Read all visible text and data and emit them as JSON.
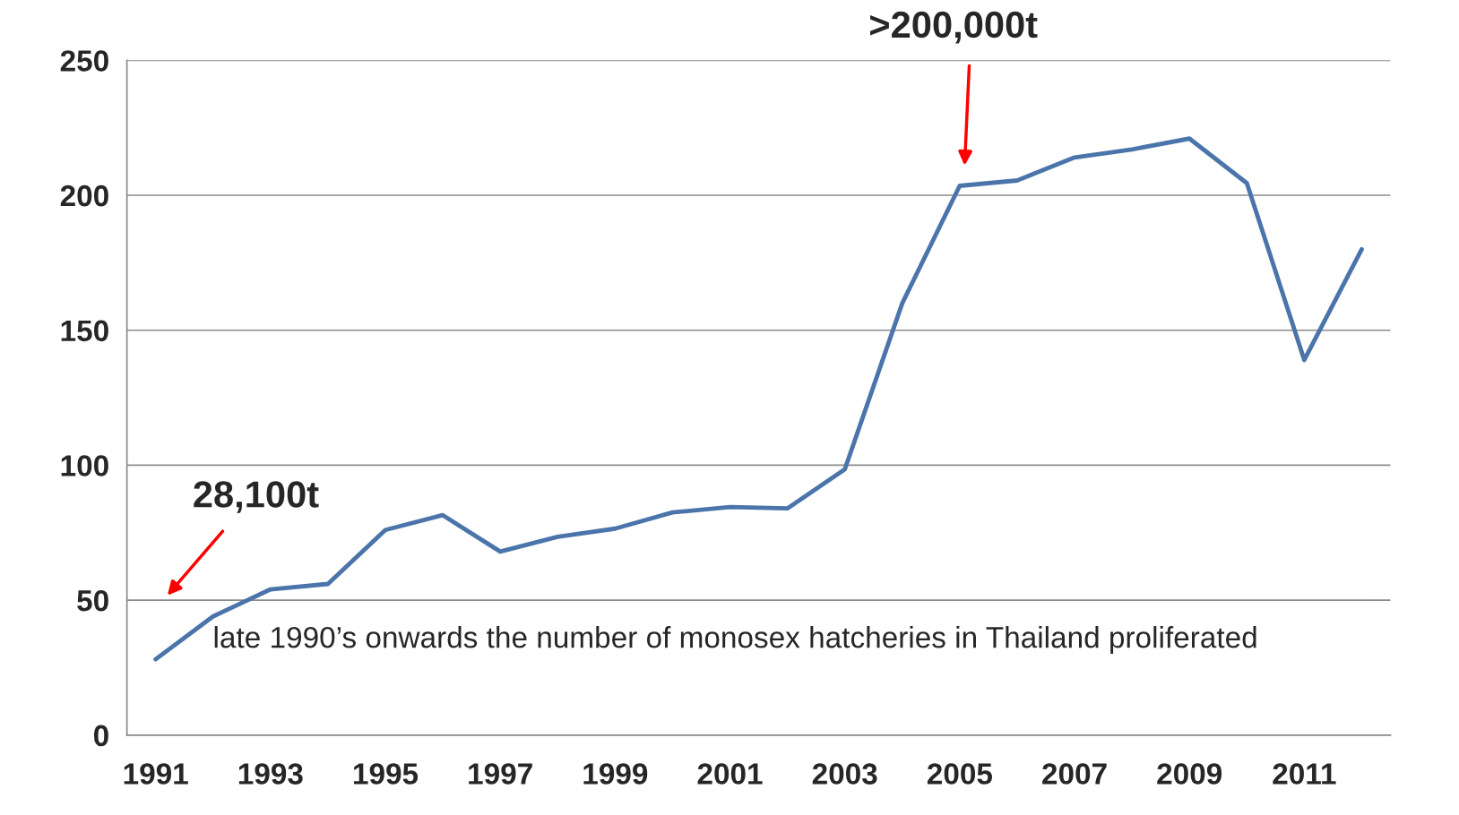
{
  "chart_data": {
    "type": "line",
    "categories": [
      "1991",
      null,
      "1993",
      null,
      "1995",
      null,
      "1997",
      null,
      "1999",
      null,
      "2001",
      null,
      "2003",
      null,
      "2005",
      null,
      "2007",
      null,
      "2009",
      null,
      "2011",
      null
    ],
    "series": [
      {
        "color": "#4a74aa",
        "values": [
          28.1,
          44,
          54,
          56,
          76,
          81.5,
          68,
          73.5,
          76.5,
          82.5,
          84.5,
          84,
          98.5,
          160,
          203.5,
          205.5,
          214,
          217,
          221,
          204.5,
          139,
          180
        ]
      }
    ],
    "ylim": [
      0,
      250
    ],
    "yticks": [
      0,
      50,
      100,
      150,
      200,
      250
    ],
    "grid": "y",
    "marker": "none",
    "line_style": "solid",
    "legend": false,
    "annotations": [
      "28,100t",
      ">200,000t",
      "late 1990’s onwards the number of monosex hatcheries in Thailand proliferated"
    ]
  }
}
